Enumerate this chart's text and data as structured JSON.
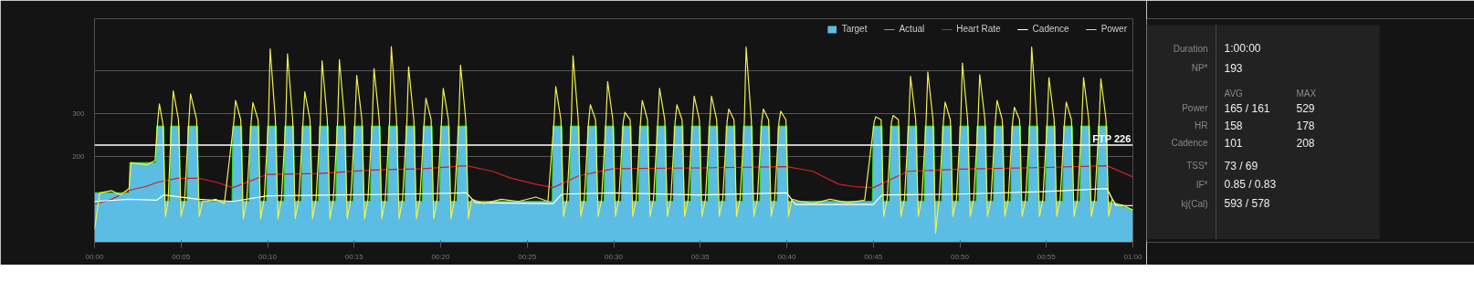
{
  "chart_data": [
    {
      "type": "line",
      "xlim": [
        0,
        60
      ],
      "ylim": [
        0,
        520
      ],
      "xticks": [
        {
          "value": 0,
          "label": "00:00"
        },
        {
          "value": 5,
          "label": "00:05"
        },
        {
          "value": 10,
          "label": "00:10"
        },
        {
          "value": 15,
          "label": "00:15"
        },
        {
          "value": 20,
          "label": "00:20"
        },
        {
          "value": 25,
          "label": "00:25"
        },
        {
          "value": 30,
          "label": "00:30"
        },
        {
          "value": 35,
          "label": "00:35"
        },
        {
          "value": 40,
          "label": "00:40"
        },
        {
          "value": 45,
          "label": "00:45"
        },
        {
          "value": 50,
          "label": "00:50"
        },
        {
          "value": 55,
          "label": "00:55"
        },
        {
          "value": 60,
          "label": "01:00"
        }
      ],
      "yticks": [
        200,
        300,
        {
          "value": 400,
          "label": null
        }
      ],
      "grid": "y",
      "legend": "top right",
      "ref_lines": [
        {
          "axis": "y",
          "value": 226,
          "label": "FTP 226",
          "color": "#ffffff"
        }
      ],
      "x": [
        0,
        2,
        2.05,
        3.55,
        3.6,
        4.0,
        4.05,
        4.35,
        4.4,
        4.9,
        4.95,
        5.35,
        5.4,
        5.95,
        6.0,
        7.95,
        8,
        8.5,
        8.55,
        8.95,
        9,
        9.5,
        9.55,
        9.95,
        10,
        10.5,
        10.55,
        10.95,
        11,
        11.5,
        11.55,
        11.95,
        12,
        12.5,
        12.55,
        12.95,
        13,
        13.5,
        13.55,
        13.95,
        14,
        14.5,
        14.55,
        14.95,
        15,
        15.5,
        15.55,
        15.95,
        16,
        16.5,
        16.55,
        16.95,
        17,
        17.5,
        17.55,
        17.95,
        18,
        18.5,
        18.55,
        18.95,
        19,
        19.5,
        19.55,
        19.95,
        20,
        20.5,
        20.55,
        20.95,
        21,
        21.5,
        21.55,
        26.45,
        26.5,
        27,
        27.05,
        27.45,
        27.5,
        28,
        28.05,
        28.45,
        28.5,
        29,
        29.05,
        29.45,
        29.5,
        30,
        30.05,
        30.45,
        30.5,
        31,
        31.05,
        31.45,
        31.5,
        32,
        32.05,
        32.45,
        32.5,
        33,
        33.05,
        33.45,
        33.5,
        34,
        34.05,
        34.45,
        34.5,
        35,
        35.05,
        35.45,
        35.5,
        36,
        36.05,
        36.45,
        36.5,
        37,
        37.05,
        37.45,
        37.5,
        38,
        38.05,
        38.45,
        38.5,
        39,
        39.05,
        39.45,
        39.5,
        40,
        40.05,
        44.95,
        45,
        45.5,
        45.55,
        45.95,
        46,
        46.5,
        46.55,
        46.95,
        47,
        47.5,
        47.55,
        47.95,
        48,
        48.5,
        48.55,
        48.95,
        49,
        49.5,
        49.55,
        49.95,
        50,
        50.5,
        50.55,
        50.95,
        51,
        51.5,
        51.55,
        51.95,
        52,
        52.5,
        52.55,
        52.95,
        53,
        53.5,
        53.55,
        53.95,
        54,
        54.5,
        54.55,
        54.95,
        55,
        55.5,
        55.55,
        55.95,
        56,
        56.5,
        56.55,
        56.95,
        57,
        57.5,
        57.55,
        57.95,
        58,
        58.5,
        58.55,
        60
      ],
      "series": [
        {
          "name": "Target",
          "type": "area",
          "color": "#5bbde4",
          "values": [
            115,
            115,
            185,
            185,
            270,
            270,
            95,
            95,
            270,
            270,
            95,
            95,
            270,
            270,
            95,
            95,
            270,
            270,
            95,
            95,
            270,
            270,
            95,
            95,
            270,
            270,
            95,
            95,
            270,
            270,
            95,
            95,
            270,
            270,
            95,
            95,
            270,
            270,
            95,
            95,
            270,
            270,
            95,
            95,
            270,
            270,
            95,
            95,
            270,
            270,
            95,
            95,
            270,
            270,
            95,
            95,
            270,
            270,
            95,
            95,
            270,
            270,
            95,
            95,
            270,
            270,
            95,
            95,
            270,
            270,
            95,
            95,
            270,
            270,
            95,
            95,
            270,
            270,
            95,
            95,
            270,
            270,
            95,
            95,
            270,
            270,
            95,
            95,
            270,
            270,
            95,
            95,
            270,
            270,
            95,
            95,
            270,
            270,
            95,
            95,
            270,
            270,
            95,
            95,
            270,
            270,
            95,
            95,
            270,
            270,
            95,
            95,
            270,
            270,
            95,
            95,
            270,
            270,
            95,
            95,
            270,
            270,
            95,
            95,
            270,
            270,
            95,
            95,
            270,
            270,
            95,
            95,
            270,
            270,
            95,
            95,
            270,
            270,
            95,
            95,
            270,
            270,
            95,
            95,
            270,
            270,
            95,
            95,
            270,
            270,
            95,
            95,
            270,
            270,
            95,
            95,
            270,
            270,
            95,
            95,
            270,
            270,
            95,
            95,
            270,
            270,
            95,
            95,
            270,
            270,
            95,
            95,
            270,
            270,
            95,
            95,
            270,
            270,
            95,
            95,
            270,
            270,
            95,
            75
          ]
        },
        {
          "name": "Actual",
          "type": "line",
          "color": "#33dd33",
          "values": [
            115,
            115,
            185,
            185,
            270,
            270,
            95,
            95,
            270,
            270,
            95,
            95,
            270,
            270,
            95,
            95,
            270,
            270,
            95,
            95,
            270,
            270,
            95,
            95,
            270,
            270,
            95,
            95,
            270,
            270,
            95,
            95,
            270,
            270,
            95,
            95,
            270,
            270,
            95,
            95,
            270,
            270,
            95,
            95,
            270,
            270,
            95,
            95,
            270,
            270,
            95,
            95,
            270,
            270,
            95,
            95,
            270,
            270,
            95,
            95,
            270,
            270,
            95,
            95,
            270,
            270,
            95,
            95,
            270,
            270,
            95,
            95,
            270,
            270,
            95,
            95,
            270,
            270,
            95,
            95,
            270,
            270,
            95,
            95,
            270,
            270,
            95,
            95,
            270,
            270,
            95,
            95,
            270,
            270,
            95,
            95,
            270,
            270,
            95,
            95,
            270,
            270,
            95,
            95,
            270,
            270,
            95,
            95,
            270,
            270,
            95,
            95,
            270,
            270,
            95,
            95,
            270,
            270,
            95,
            95,
            270,
            270,
            95,
            95,
            270,
            270,
            95,
            95,
            270,
            270,
            95,
            95,
            270,
            270,
            95,
            95,
            270,
            270,
            95,
            95,
            270,
            270,
            95,
            95,
            270,
            270,
            95,
            95,
            270,
            270,
            95,
            95,
            270,
            270,
            95,
            95,
            270,
            270,
            95,
            95,
            270,
            270,
            95,
            95,
            270,
            270,
            95,
            95,
            270,
            270,
            95,
            95,
            270,
            270,
            95,
            95,
            270,
            270,
            95,
            95,
            270,
            270,
            95,
            75
          ]
        },
        {
          "name": "Heart Rate",
          "type": "line",
          "color": "#cc2222",
          "x": [
            0,
            1,
            2,
            3,
            3.6,
            4.8,
            6,
            7,
            8,
            10,
            13,
            16,
            19,
            21.5,
            23,
            24,
            25.5,
            26.5,
            28,
            30,
            35,
            40,
            41.5,
            43,
            44,
            45,
            47,
            50,
            55,
            58.5,
            60
          ],
          "values": [
            88,
            100,
            121,
            130,
            139,
            149,
            149,
            140,
            127,
            158,
            160,
            168,
            171,
            178,
            165,
            150,
            135,
            127,
            155,
            171,
            173,
            176,
            165,
            135,
            129,
            127,
            165,
            170,
            174,
            178,
            152
          ]
        },
        {
          "name": "Cadence",
          "type": "line",
          "color": "#ffffff",
          "x": [
            0,
            2,
            3.6,
            4,
            6,
            8,
            10,
            14,
            18,
            21.5,
            22,
            26.5,
            27,
            30,
            35,
            40,
            40.5,
            45,
            45.5,
            50,
            55,
            58.5,
            59,
            60
          ],
          "values": [
            95,
            100,
            98,
            110,
            100,
            95,
            108,
            110,
            112,
            115,
            92,
            90,
            112,
            115,
            110,
            115,
            88,
            88,
            110,
            112,
            118,
            125,
            86,
            85
          ]
        },
        {
          "name": "Power",
          "type": "line",
          "color": "#f0f050",
          "x": [
            0,
            0.3,
            1,
            1.5,
            2,
            2.1,
            3,
            3.5,
            3.65,
            3.75,
            3.95,
            4.1,
            4.25,
            4.45,
            4.55,
            4.85,
            5.0,
            5.2,
            5.45,
            5.55,
            5.9,
            6.05,
            6.25,
            6.5,
            7,
            7.5,
            8.05,
            8.15,
            8.45,
            8.6,
            8.8,
            9.05,
            9.15,
            9.45,
            9.6,
            9.8,
            10.05,
            10.15,
            10.45,
            10.6,
            10.8,
            11.05,
            11.15,
            11.45,
            11.6,
            11.8,
            12.05,
            12.15,
            12.45,
            12.6,
            12.8,
            13.05,
            13.15,
            13.45,
            13.6,
            13.8,
            14.05,
            14.15,
            14.45,
            14.6,
            14.8,
            15.05,
            15.15,
            15.45,
            15.6,
            15.8,
            16.05,
            16.15,
            16.45,
            16.6,
            16.8,
            17.05,
            17.15,
            17.45,
            17.6,
            17.8,
            18.05,
            18.15,
            18.45,
            18.6,
            18.8,
            19.05,
            19.15,
            19.45,
            19.6,
            19.8,
            20.05,
            20.15,
            20.45,
            20.6,
            20.8,
            21.05,
            21.15,
            21.45,
            21.6,
            21.8,
            22.5,
            23.5,
            24.5,
            25.5,
            26.2,
            26.55,
            26.65,
            26.95,
            27.1,
            27.3,
            27.55,
            27.65,
            27.95,
            28.1,
            28.3,
            28.55,
            28.65,
            28.95,
            29.1,
            29.3,
            29.55,
            29.65,
            29.95,
            30.1,
            30.3,
            30.55,
            30.65,
            30.95,
            31.1,
            31.3,
            31.55,
            31.65,
            31.95,
            32.1,
            32.3,
            32.55,
            32.65,
            32.95,
            33.1,
            33.3,
            33.55,
            33.65,
            33.95,
            34.1,
            34.3,
            34.55,
            34.65,
            34.95,
            35.1,
            35.3,
            35.55,
            35.65,
            35.95,
            36.1,
            36.3,
            36.55,
            36.65,
            36.95,
            37.1,
            37.3,
            37.55,
            37.65,
            37.95,
            38.1,
            38.3,
            38.55,
            38.65,
            38.95,
            39.1,
            39.3,
            39.55,
            39.65,
            39.95,
            40.1,
            40.3,
            40.8,
            41.5,
            42.5,
            43.5,
            44.5,
            45.05,
            45.15,
            45.45,
            45.6,
            45.8,
            46.05,
            46.15,
            46.45,
            46.6,
            46.8,
            47.05,
            47.15,
            47.45,
            47.6,
            47.8,
            48.05,
            48.15,
            48.45,
            48.6,
            48.8,
            49.05,
            49.15,
            49.45,
            49.6,
            49.8,
            50.05,
            50.15,
            50.45,
            50.6,
            50.8,
            51.05,
            51.15,
            51.45,
            51.6,
            51.8,
            52.05,
            52.15,
            52.45,
            52.6,
            52.8,
            53.05,
            53.15,
            53.45,
            53.6,
            53.8,
            54.05,
            54.15,
            54.45,
            54.6,
            54.8,
            55.05,
            55.15,
            55.45,
            55.6,
            55.8,
            56.05,
            56.15,
            56.45,
            56.6,
            56.8,
            57.05,
            57.15,
            57.45,
            57.6,
            57.8,
            58.05,
            58.15,
            58.45,
            58.6,
            58.8,
            59,
            59.5,
            60
          ],
          "values": [
            30,
            115,
            120,
            110,
            125,
            185,
            180,
            190,
            280,
            322,
            275,
            60,
            95,
            280,
            352,
            285,
            60,
            95,
            280,
            345,
            285,
            60,
            95,
            95,
            100,
            90,
            280,
            330,
            285,
            55,
            100,
            280,
            325,
            285,
            55,
            100,
            280,
            450,
            285,
            55,
            100,
            280,
            438,
            285,
            55,
            100,
            280,
            350,
            285,
            55,
            100,
            280,
            422,
            285,
            55,
            100,
            280,
            425,
            285,
            55,
            100,
            280,
            388,
            285,
            55,
            100,
            280,
            404,
            285,
            55,
            100,
            280,
            455,
            285,
            55,
            100,
            280,
            408,
            285,
            55,
            100,
            280,
            335,
            285,
            55,
            100,
            280,
            358,
            285,
            55,
            100,
            280,
            412,
            285,
            55,
            100,
            90,
            100,
            95,
            105,
            95,
            280,
            362,
            285,
            60,
            100,
            280,
            434,
            285,
            60,
            100,
            280,
            320,
            285,
            60,
            100,
            280,
            374,
            285,
            60,
            100,
            280,
            302,
            285,
            60,
            100,
            280,
            330,
            285,
            60,
            100,
            280,
            358,
            285,
            60,
            100,
            280,
            320,
            285,
            60,
            100,
            280,
            340,
            285,
            60,
            100,
            280,
            340,
            285,
            60,
            100,
            280,
            310,
            285,
            60,
            100,
            280,
            454,
            285,
            60,
            100,
            280,
            310,
            285,
            60,
            100,
            280,
            305,
            285,
            60,
            100,
            95,
            90,
            100,
            92,
            98,
            280,
            292,
            285,
            60,
            100,
            280,
            295,
            285,
            60,
            100,
            280,
            386,
            285,
            60,
            100,
            280,
            396,
            285,
            21,
            100,
            280,
            326,
            285,
            60,
            100,
            280,
            417,
            285,
            60,
            100,
            280,
            390,
            285,
            60,
            100,
            280,
            330,
            285,
            60,
            100,
            280,
            314,
            285,
            60,
            100,
            280,
            454,
            285,
            60,
            100,
            280,
            383,
            285,
            60,
            100,
            280,
            326,
            285,
            60,
            100,
            280,
            383,
            285,
            60,
            100,
            280,
            380,
            285,
            60,
            100,
            90,
            85,
            75
          ]
        }
      ]
    },
    {
      "type": "other",
      "annotations": [
        "Duration",
        "1:00:00",
        "NP*",
        "193",
        "AVG",
        "MAX",
        "Power",
        "165 / 161",
        "529",
        "HR",
        "158",
        "178",
        "Cadence",
        "101",
        "208",
        "TSS*",
        "73 / 69",
        "IF*",
        "0.85 / 0.83",
        "kj(Cal)",
        "593 / 578"
      ]
    }
  ]
}
